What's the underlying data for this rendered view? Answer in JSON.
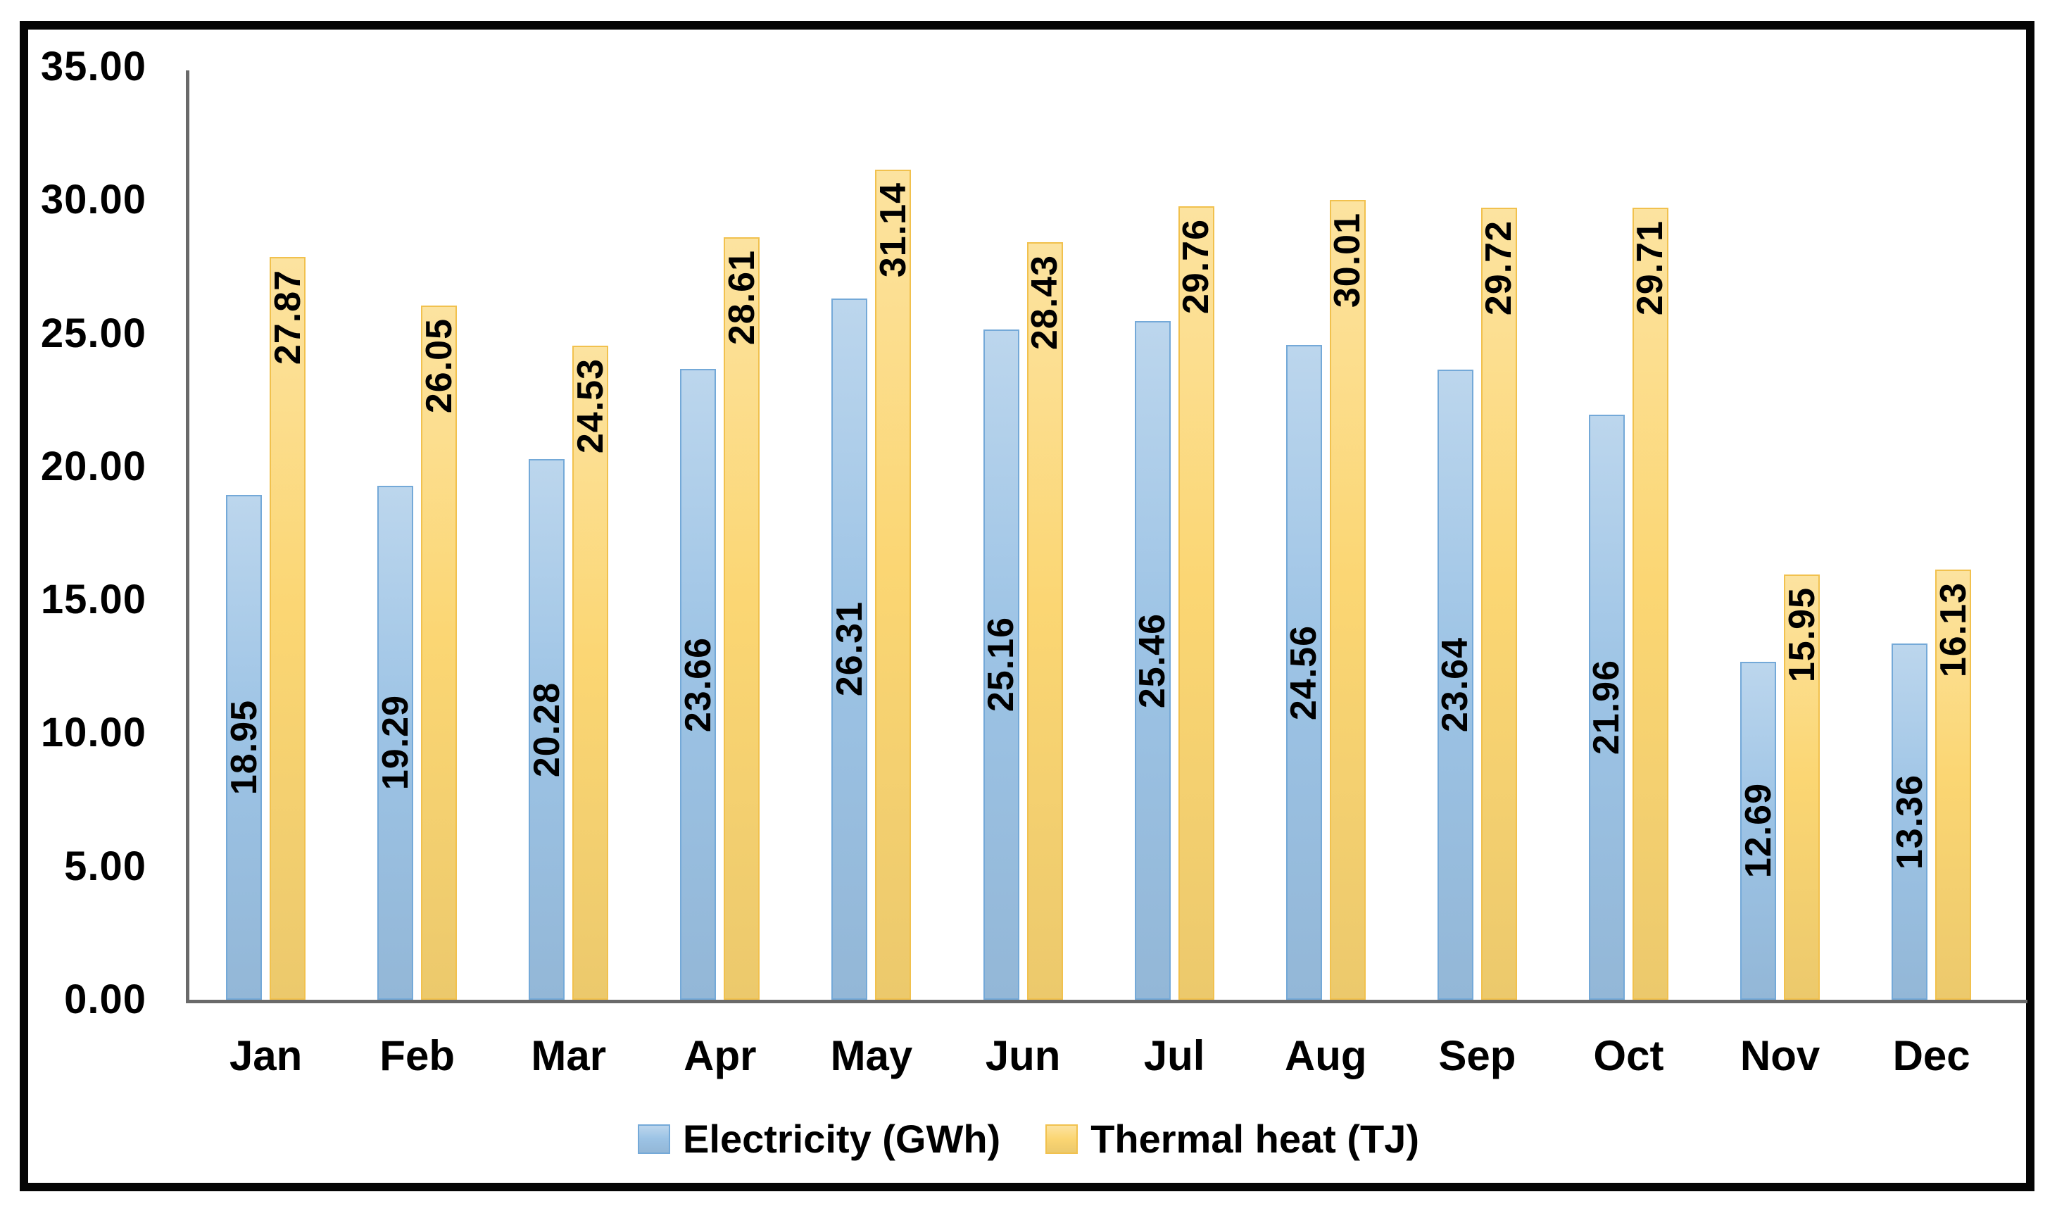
{
  "figure": {
    "background": "#FFFFFF",
    "frame_border_color": "#050505",
    "axis_color": "#6A6A6A",
    "data_label_color": "#000000"
  },
  "chart_data": {
    "type": "bar",
    "title": "",
    "xlabel": "",
    "ylabel": "",
    "categories": [
      "Jan",
      "Feb",
      "Mar",
      "Apr",
      "May",
      "Jun",
      "Jul",
      "Aug",
      "Sep",
      "Oct",
      "Nov",
      "Dec"
    ],
    "series": [
      {
        "name": "Electricity (GWh)",
        "values": [
          18.95,
          19.29,
          20.28,
          23.66,
          26.31,
          25.16,
          25.46,
          24.56,
          23.64,
          21.96,
          12.69,
          13.36
        ],
        "fill": "#9CC3E5",
        "border": "#74A9D8",
        "label_position": "center"
      },
      {
        "name": "Thermal heat (TJ)",
        "values": [
          27.87,
          26.05,
          24.53,
          28.61,
          31.14,
          28.43,
          29.76,
          30.01,
          29.72,
          29.71,
          15.95,
          16.13
        ],
        "fill": "#FBD673",
        "border": "#F1C14E",
        "label_position": "inside_end"
      }
    ],
    "ylim": [
      0,
      35
    ],
    "y_tick_step": 5,
    "y_tick_labels": [
      "0.00",
      "5.00",
      "10.00",
      "15.00",
      "20.00",
      "25.00",
      "30.00",
      "35.00"
    ],
    "value_label_decimals": 2,
    "grid": false,
    "legend_position": "bottom-center"
  }
}
